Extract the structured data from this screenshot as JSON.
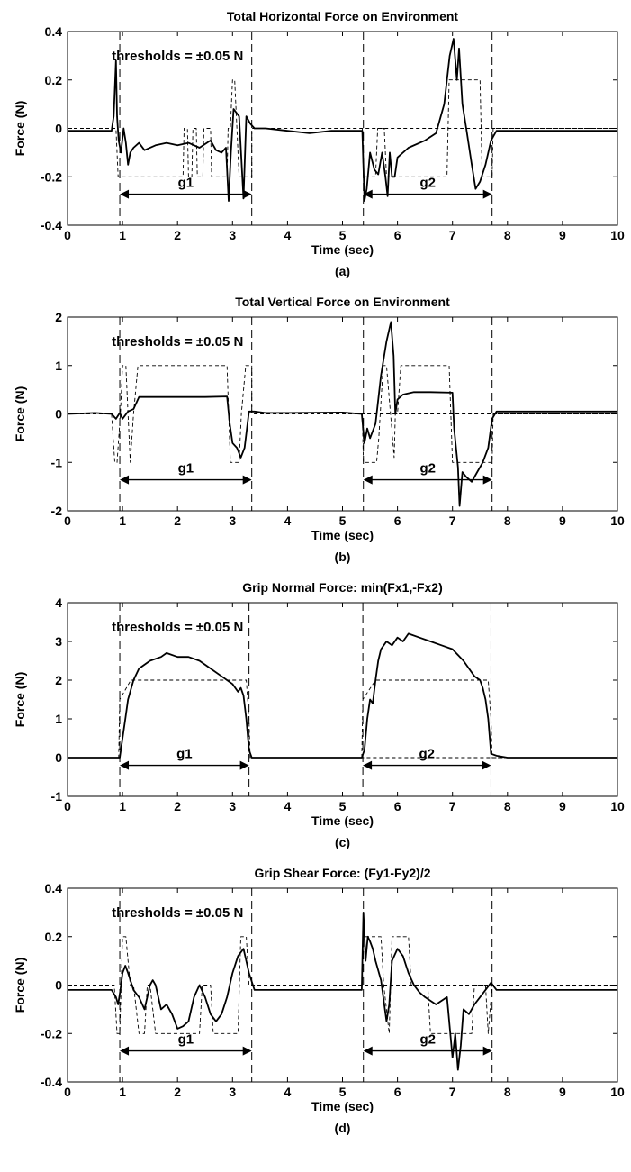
{
  "chart_data": [
    {
      "type": "line",
      "title": "Total Horizontal Force on Environment",
      "xlabel": "Time (sec)",
      "ylabel": "Force (N)",
      "caption": "(a)",
      "annotation": "thresholds = ±0.05 N",
      "xlim": [
        0,
        10
      ],
      "ylim": [
        -0.4,
        0.4
      ],
      "xticks": [
        0,
        1,
        2,
        3,
        4,
        5,
        6,
        7,
        8,
        9,
        10
      ],
      "xtick_labels": [
        "0",
        "1",
        "2",
        "3",
        "4",
        "5",
        "6",
        "7",
        "8",
        "9",
        "10"
      ],
      "yticks": [
        -0.4,
        -0.2,
        0,
        0.2,
        0.4
      ],
      "ytick_labels": [
        "-0.4",
        "-0.2",
        "0",
        "0.2",
        "0.4"
      ],
      "grid": false,
      "grasps": [
        {
          "label": "g1",
          "start": 0.95,
          "end": 3.35
        },
        {
          "label": "g2",
          "start": 5.38,
          "end": 7.72
        }
      ],
      "series": [
        {
          "style": "solid",
          "x": [
            0,
            0.4,
            0.8,
            0.84,
            0.88,
            0.9,
            0.93,
            0.97,
            1.02,
            1.06,
            1.1,
            1.14,
            1.2,
            1.3,
            1.4,
            1.6,
            1.8,
            2.0,
            2.2,
            2.4,
            2.6,
            2.7,
            2.8,
            2.88,
            2.93,
            2.97,
            3.02,
            3.12,
            3.2,
            3.25,
            3.32,
            3.4,
            3.6,
            4.0,
            4.4,
            4.8,
            5.2,
            5.36,
            5.4,
            5.44,
            5.5,
            5.58,
            5.65,
            5.72,
            5.78,
            5.82,
            5.86,
            5.9,
            5.95,
            6.0,
            6.2,
            6.5,
            6.7,
            6.85,
            6.95,
            7.02,
            7.08,
            7.12,
            7.18,
            7.25,
            7.35,
            7.42,
            7.5,
            7.6,
            7.7,
            7.8,
            8.0,
            9.0,
            10.0
          ],
          "y": [
            -0.01,
            -0.01,
            -0.01,
            0.05,
            0.28,
            0.05,
            -0.05,
            -0.1,
            0.0,
            -0.06,
            -0.15,
            -0.1,
            -0.08,
            -0.06,
            -0.09,
            -0.07,
            -0.06,
            -0.07,
            -0.06,
            -0.08,
            -0.05,
            -0.09,
            -0.1,
            -0.08,
            -0.3,
            -0.1,
            0.08,
            0.05,
            -0.29,
            0.05,
            0.02,
            0.0,
            0.0,
            -0.01,
            -0.02,
            -0.01,
            -0.01,
            -0.01,
            -0.3,
            -0.25,
            -0.1,
            -0.17,
            -0.19,
            -0.1,
            -0.2,
            -0.28,
            -0.1,
            -0.2,
            -0.2,
            -0.12,
            -0.08,
            -0.05,
            -0.02,
            0.1,
            0.3,
            0.37,
            0.2,
            0.33,
            0.1,
            0.0,
            -0.15,
            -0.25,
            -0.22,
            -0.15,
            -0.05,
            -0.01,
            -0.01,
            -0.01,
            -0.01
          ]
        },
        {
          "style": "dashed",
          "x": [
            0,
            0.88,
            0.92,
            0.98,
            1.0,
            2.1,
            2.12,
            2.18,
            2.2,
            2.26,
            2.28,
            2.34,
            2.36,
            2.46,
            2.48,
            2.6,
            2.62,
            2.72,
            2.74,
            2.9,
            2.92,
            2.96,
            3.0,
            3.04,
            3.12,
            3.16,
            3.35,
            3.35,
            10
          ],
          "y": [
            0,
            0,
            -0.2,
            -0.2,
            -0.2,
            -0.2,
            0,
            0,
            -0.2,
            -0.2,
            0,
            0,
            -0.2,
            -0.2,
            0,
            0,
            -0.2,
            -0.2,
            -0.2,
            -0.2,
            0,
            0,
            0.2,
            0.2,
            -0.2,
            -0.2,
            -0.2,
            0,
            0
          ]
        },
        {
          "style": "dashed",
          "x": [
            5.36,
            5.38,
            5.6,
            5.64,
            5.76,
            5.8,
            5.9,
            5.94,
            6.9,
            6.94,
            7.5,
            7.54,
            7.72,
            7.74,
            10
          ],
          "y": [
            0,
            -0.2,
            -0.2,
            0,
            0,
            -0.2,
            -0.2,
            -0.2,
            -0.2,
            0.2,
            0.2,
            -0.2,
            -0.2,
            0,
            0
          ]
        }
      ]
    },
    {
      "type": "line",
      "title": "Total Vertical Force on Environment",
      "xlabel": "Time (sec)",
      "ylabel": "Force (N)",
      "caption": "(b)",
      "annotation": "thresholds = ±0.05 N",
      "xlim": [
        0,
        10
      ],
      "ylim": [
        -2,
        2
      ],
      "xticks": [
        0,
        1,
        2,
        3,
        4,
        5,
        6,
        7,
        8,
        9,
        10
      ],
      "xtick_labels": [
        "0",
        "1",
        "2",
        "3",
        "4",
        "5",
        "6",
        "7",
        "8",
        "9",
        "10"
      ],
      "yticks": [
        -2,
        -1,
        0,
        1,
        2
      ],
      "ytick_labels": [
        "-2",
        "-1",
        "0",
        "1",
        "2"
      ],
      "grid": false,
      "grasps": [
        {
          "label": "g1",
          "start": 0.95,
          "end": 3.35
        },
        {
          "label": "g2",
          "start": 5.38,
          "end": 7.72
        }
      ],
      "series": [
        {
          "style": "solid",
          "x": [
            0,
            0.5,
            0.8,
            0.88,
            0.95,
            1.0,
            1.1,
            1.2,
            1.3,
            1.5,
            2.0,
            2.5,
            2.9,
            2.95,
            3.0,
            3.08,
            3.15,
            3.22,
            3.3,
            3.4,
            3.6,
            4.0,
            5.0,
            5.35,
            5.4,
            5.45,
            5.5,
            5.6,
            5.7,
            5.8,
            5.88,
            5.93,
            5.96,
            6.0,
            6.1,
            6.3,
            6.6,
            7.0,
            7.03,
            7.1,
            7.13,
            7.18,
            7.25,
            7.35,
            7.45,
            7.55,
            7.65,
            7.72,
            7.8,
            8.0,
            9.0,
            10.0
          ],
          "y": [
            0,
            0.02,
            0.0,
            -0.1,
            0.02,
            -0.1,
            0.05,
            0.1,
            0.35,
            0.35,
            0.35,
            0.35,
            0.36,
            -0.2,
            -0.6,
            -0.7,
            -0.9,
            -0.7,
            0.05,
            0.05,
            0.02,
            0.02,
            0.03,
            0.0,
            -0.6,
            -0.3,
            -0.5,
            -0.2,
            0.8,
            1.5,
            1.9,
            1.2,
            0.0,
            0.3,
            0.4,
            0.45,
            0.45,
            0.44,
            -0.3,
            -1.1,
            -1.9,
            -1.2,
            -1.3,
            -1.4,
            -1.2,
            -1.0,
            -0.7,
            -0.1,
            0.05,
            0.05,
            0.05,
            0.05
          ]
        },
        {
          "style": "dashed",
          "x": [
            0,
            0.8,
            0.86,
            0.9,
            0.96,
            1.0,
            1.06,
            1.1,
            1.14,
            1.2,
            1.28,
            2.9,
            2.96,
            3.12,
            3.16,
            3.24,
            3.35,
            3.35,
            10
          ],
          "y": [
            0,
            0,
            -1,
            -1,
            0,
            1,
            1,
            0,
            -1,
            0,
            1,
            1,
            -1,
            -1,
            0,
            1,
            1,
            0,
            0
          ]
        },
        {
          "style": "dashed",
          "x": [
            5.36,
            5.38,
            5.5,
            5.56,
            5.62,
            5.66,
            5.74,
            5.8,
            5.94,
            5.96,
            6.0,
            6.06,
            6.94,
            7.0,
            7.4,
            7.5,
            7.6,
            7.72,
            7.74,
            10
          ],
          "y": [
            0,
            -1,
            -1,
            -1,
            -1,
            -0.5,
            1,
            1,
            -0.9,
            0,
            0,
            1,
            1,
            -1,
            -1,
            -1,
            -1,
            -1,
            0,
            0
          ]
        }
      ]
    },
    {
      "type": "line",
      "title": "Grip Normal Force: min(Fx1,-Fx2)",
      "xlabel": "Time (sec)",
      "ylabel": "Force (N)",
      "caption": "(c)",
      "annotation": "thresholds = ±0.05 N",
      "xlim": [
        0,
        10
      ],
      "ylim": [
        -1,
        4
      ],
      "xticks": [
        0,
        1,
        2,
        3,
        4,
        5,
        6,
        7,
        8,
        9,
        10
      ],
      "xtick_labels": [
        "0",
        "1",
        "2",
        "3",
        "4",
        "5",
        "6",
        "7",
        "8",
        "9",
        "10"
      ],
      "yticks": [
        -1,
        0,
        1,
        2,
        3,
        4
      ],
      "ytick_labels": [
        "-1",
        "0",
        "1",
        "2",
        "3",
        "4"
      ],
      "grid": false,
      "grasps": [
        {
          "label": "g1",
          "start": 0.95,
          "end": 3.3
        },
        {
          "label": "g2",
          "start": 5.37,
          "end": 7.7
        }
      ],
      "series": [
        {
          "style": "solid",
          "x": [
            0,
            0.9,
            0.95,
            1.0,
            1.05,
            1.1,
            1.2,
            1.3,
            1.5,
            1.7,
            1.8,
            2.0,
            2.2,
            2.4,
            2.6,
            2.8,
            2.9,
            3.0,
            3.1,
            3.15,
            3.2,
            3.25,
            3.3,
            3.35,
            3.5,
            4.0,
            5.0,
            5.35,
            5.4,
            5.45,
            5.5,
            5.55,
            5.6,
            5.65,
            5.7,
            5.8,
            5.9,
            6.0,
            6.1,
            6.2,
            6.4,
            6.6,
            6.8,
            7.0,
            7.2,
            7.3,
            7.4,
            7.5,
            7.55,
            7.6,
            7.65,
            7.7,
            7.8,
            8.0,
            10.0
          ],
          "y": [
            0,
            0,
            0.0,
            0.5,
            1.0,
            1.5,
            2.0,
            2.3,
            2.5,
            2.6,
            2.7,
            2.6,
            2.6,
            2.5,
            2.3,
            2.1,
            2.0,
            1.9,
            1.7,
            1.8,
            1.6,
            1.0,
            0.2,
            0.0,
            0.0,
            0.0,
            0.0,
            0.0,
            0.2,
            1.0,
            1.5,
            1.4,
            2.0,
            2.5,
            2.8,
            3.0,
            2.9,
            3.1,
            3.0,
            3.2,
            3.1,
            3.0,
            2.9,
            2.8,
            2.5,
            2.3,
            2.1,
            2.0,
            1.8,
            1.5,
            1.0,
            0.1,
            0.05,
            0.0,
            0.0
          ]
        },
        {
          "style": "dashed",
          "x": [
            0,
            0.93,
            0.95,
            1.15,
            3.25,
            3.3,
            3.32,
            10
          ],
          "y": [
            0,
            0,
            1.5,
            2,
            2,
            1.0,
            0,
            0
          ]
        },
        {
          "style": "dashed",
          "x": [
            5.35,
            5.37,
            5.6,
            7.65,
            7.7,
            7.72,
            10
          ],
          "y": [
            0,
            1.5,
            2,
            2,
            1.0,
            0,
            0
          ]
        }
      ]
    },
    {
      "type": "line",
      "title": "Grip Shear Force: (Fy1-Fy2)/2",
      "xlabel": "Time (sec)",
      "ylabel": "Force (N)",
      "caption": "(d)",
      "annotation": "thresholds = ±0.05 N",
      "xlim": [
        0,
        10
      ],
      "ylim": [
        -0.4,
        0.4
      ],
      "xticks": [
        0,
        1,
        2,
        3,
        4,
        5,
        6,
        7,
        8,
        9,
        10
      ],
      "xtick_labels": [
        "0",
        "1",
        "2",
        "3",
        "4",
        "5",
        "6",
        "7",
        "8",
        "9",
        "10"
      ],
      "yticks": [
        -0.4,
        -0.2,
        0,
        0.2,
        0.4
      ],
      "ytick_labels": [
        "-0.4",
        "-0.2",
        "0",
        "0.2",
        "0.4"
      ],
      "grid": false,
      "grasps": [
        {
          "label": "g1",
          "start": 0.95,
          "end": 3.35
        },
        {
          "label": "g2",
          "start": 5.38,
          "end": 7.72
        }
      ],
      "series": [
        {
          "style": "solid",
          "x": [
            0,
            0.5,
            0.8,
            0.88,
            0.92,
            0.96,
            1.0,
            1.05,
            1.1,
            1.2,
            1.3,
            1.4,
            1.5,
            1.55,
            1.6,
            1.7,
            1.8,
            1.9,
            2.0,
            2.1,
            2.2,
            2.3,
            2.4,
            2.5,
            2.6,
            2.7,
            2.8,
            2.9,
            3.0,
            3.1,
            3.2,
            3.3,
            3.4,
            3.6,
            4.0,
            5.0,
            5.35,
            5.38,
            5.42,
            5.46,
            5.5,
            5.55,
            5.6,
            5.7,
            5.8,
            5.85,
            5.9,
            6.0,
            6.1,
            6.2,
            6.3,
            6.4,
            6.5,
            6.7,
            6.9,
            7.0,
            7.05,
            7.1,
            7.15,
            7.2,
            7.3,
            7.4,
            7.5,
            7.6,
            7.7,
            7.8,
            8.0,
            10.0
          ],
          "y": [
            -0.02,
            -0.02,
            -0.02,
            -0.05,
            -0.08,
            -0.02,
            0.05,
            0.08,
            0.05,
            -0.02,
            -0.05,
            -0.1,
            0.0,
            0.02,
            0.0,
            -0.1,
            -0.08,
            -0.12,
            -0.18,
            -0.17,
            -0.15,
            -0.05,
            0.0,
            -0.05,
            -0.12,
            -0.15,
            -0.12,
            -0.05,
            0.05,
            0.12,
            0.15,
            0.05,
            -0.02,
            -0.02,
            -0.02,
            -0.02,
            -0.02,
            0.3,
            0.1,
            0.2,
            0.18,
            0.15,
            0.1,
            0.02,
            -0.15,
            -0.08,
            0.1,
            0.15,
            0.12,
            0.05,
            0.0,
            -0.03,
            -0.05,
            -0.08,
            -0.05,
            -0.3,
            -0.2,
            -0.35,
            -0.25,
            -0.1,
            -0.12,
            -0.08,
            -0.05,
            -0.02,
            0.01,
            -0.02,
            -0.02,
            -0.02
          ]
        },
        {
          "style": "dashed",
          "x": [
            0,
            0.85,
            0.9,
            0.95,
            1.0,
            1.06,
            1.14,
            1.2,
            1.3,
            1.4,
            1.45,
            1.5,
            1.6,
            1.7,
            1.75,
            2.0,
            2.4,
            2.45,
            2.6,
            2.65,
            3.1,
            3.15,
            3.25,
            3.3,
            3.35,
            10
          ],
          "y": [
            0,
            0,
            -0.2,
            -0.2,
            0.2,
            0.2,
            0,
            0,
            -0.2,
            -0.2,
            0,
            0,
            -0.2,
            -0.2,
            -0.2,
            -0.2,
            -0.2,
            0,
            0,
            -0.2,
            -0.2,
            0.2,
            0.2,
            0,
            0,
            0
          ]
        },
        {
          "style": "dashed",
          "x": [
            5.36,
            5.38,
            5.5,
            5.52,
            5.7,
            5.75,
            5.85,
            5.9,
            6.2,
            6.25,
            6.55,
            6.6,
            6.9,
            6.95,
            7.35,
            7.4,
            7.6,
            7.65,
            7.72,
            10
          ],
          "y": [
            0,
            0.2,
            0.2,
            0.2,
            0.2,
            0,
            -0.2,
            0.2,
            0.2,
            0,
            0,
            -0.2,
            -0.2,
            -0.2,
            -0.2,
            0,
            0,
            -0.2,
            0,
            0
          ]
        }
      ]
    }
  ]
}
